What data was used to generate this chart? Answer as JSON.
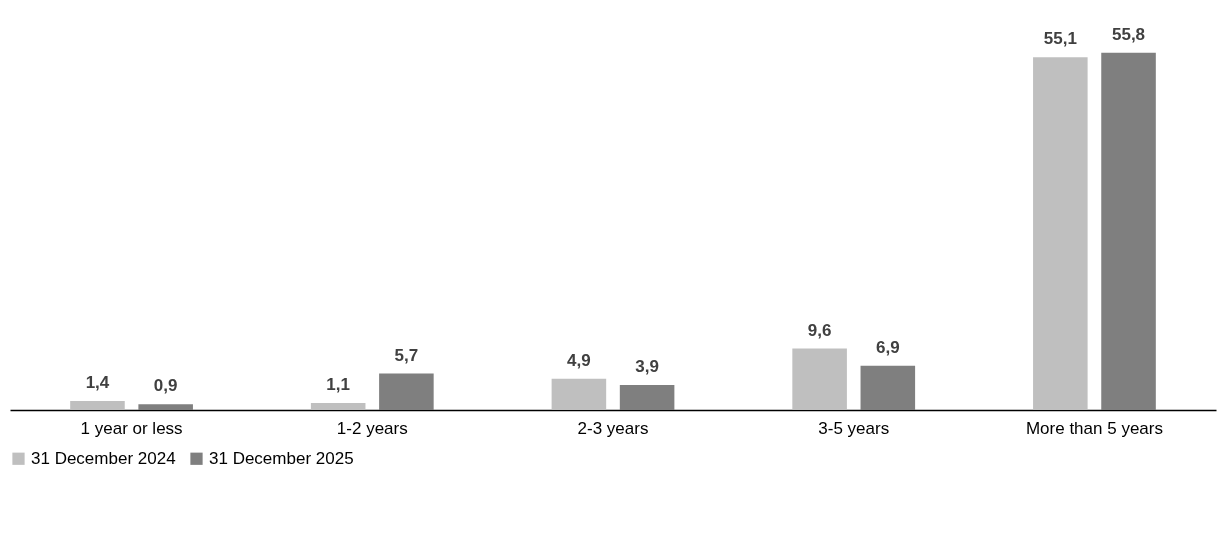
{
  "chart_data": {
    "type": "bar",
    "categories": [
      "1 year or less",
      "1-2 years",
      "2-3 years",
      "3-5 years",
      "More than 5 years"
    ],
    "series": [
      {
        "name": "31 December 2024",
        "color": "#bfbfbf",
        "values": [
          1.4,
          1.1,
          4.9,
          9.6,
          55.1
        ],
        "value_labels": [
          "1,4",
          "1,1",
          "4,9",
          "9,6",
          "55,1"
        ]
      },
      {
        "name": "31 December 2025",
        "color": "#7f7f7f",
        "values": [
          0.9,
          5.7,
          3.9,
          6.9,
          55.8
        ],
        "value_labels": [
          "0,9",
          "5,7",
          "3,9",
          "6,9",
          "55,8"
        ]
      }
    ],
    "legend": "bottom",
    "grid": false
  }
}
